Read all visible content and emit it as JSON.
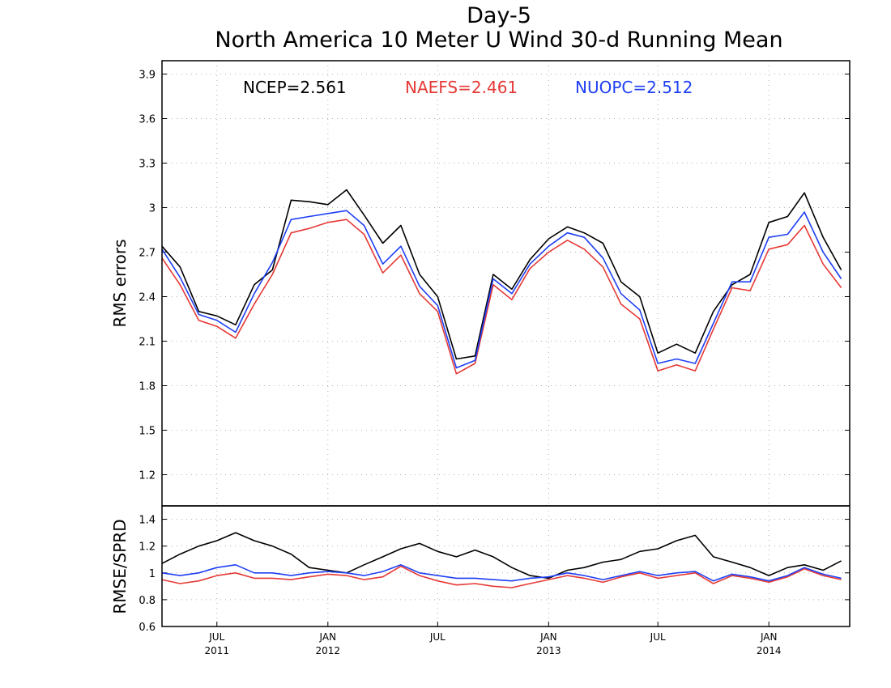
{
  "chart_data": [
    {
      "type": "line",
      "title": "Day-5",
      "subtitle": "North America 10 Meter U Wind 30-d Running Mean",
      "ylabel": "RMS errors",
      "xlabel": "",
      "ylim": [
        0.99,
        3.99
      ],
      "yticks": [
        1.2,
        1.5,
        1.8,
        2.1,
        2.4,
        2.7,
        3.0,
        3.3,
        3.6,
        3.9
      ],
      "ytick_labels": [
        "1.2",
        "1.5",
        "1.8",
        "2.1",
        "2.4",
        "2.7",
        "3",
        "3.3",
        "3.6",
        "3.9"
      ],
      "grid": true,
      "legend_placement": "top",
      "legend": [
        {
          "label": "NCEP=2.561",
          "color": "#000000"
        },
        {
          "label": "NAEFS=2.461",
          "color": "#e53935"
        },
        {
          "label": "NUOPC=2.512",
          "color": "#1e3ff5"
        }
      ],
      "x": [
        "2011-04-01",
        "2011-05-01",
        "2011-06-01",
        "2011-07-01",
        "2011-08-01",
        "2011-09-01",
        "2011-10-01",
        "2011-11-01",
        "2011-12-01",
        "2012-01-01",
        "2012-02-01",
        "2012-03-01",
        "2012-04-01",
        "2012-05-01",
        "2012-06-01",
        "2012-07-01",
        "2012-08-01",
        "2012-09-01",
        "2012-10-01",
        "2012-11-01",
        "2012-12-01",
        "2013-01-01",
        "2013-02-01",
        "2013-03-01",
        "2013-04-01",
        "2013-05-01",
        "2013-06-01",
        "2013-07-01",
        "2013-08-01",
        "2013-09-01",
        "2013-10-01",
        "2013-11-01",
        "2013-12-01",
        "2014-01-01",
        "2014-02-01",
        "2014-03-01",
        "2014-04-01",
        "2014-05-01"
      ],
      "series": [
        {
          "name": "NCEP",
          "color": "#000000",
          "values": [
            2.74,
            2.6,
            2.3,
            2.27,
            2.21,
            2.48,
            2.58,
            3.05,
            3.04,
            3.02,
            3.12,
            2.95,
            2.76,
            2.88,
            2.55,
            2.4,
            1.98,
            2.0,
            2.55,
            2.45,
            2.65,
            2.79,
            2.87,
            2.83,
            2.76,
            2.5,
            2.4,
            2.02,
            2.08,
            2.02,
            2.3,
            2.48,
            2.55,
            2.9,
            2.94,
            3.1,
            2.8,
            2.58
          ]
        },
        {
          "name": "NAEFS",
          "color": "#e53935",
          "values": [
            2.66,
            2.48,
            2.24,
            2.2,
            2.12,
            2.35,
            2.55,
            2.83,
            2.86,
            2.9,
            2.92,
            2.82,
            2.56,
            2.68,
            2.42,
            2.3,
            1.88,
            1.95,
            2.48,
            2.38,
            2.59,
            2.7,
            2.78,
            2.72,
            2.6,
            2.35,
            2.25,
            1.9,
            1.94,
            1.9,
            2.18,
            2.46,
            2.44,
            2.72,
            2.75,
            2.88,
            2.62,
            2.46
          ]
        },
        {
          "name": "NUOPC",
          "color": "#1e3ff5",
          "values": [
            2.72,
            2.53,
            2.28,
            2.24,
            2.16,
            2.42,
            2.63,
            2.92,
            2.94,
            2.96,
            2.98,
            2.88,
            2.62,
            2.74,
            2.47,
            2.34,
            1.92,
            1.97,
            2.52,
            2.42,
            2.62,
            2.74,
            2.83,
            2.8,
            2.66,
            2.42,
            2.31,
            1.95,
            1.98,
            1.95,
            2.22,
            2.5,
            2.5,
            2.8,
            2.82,
            2.97,
            2.7,
            2.52
          ]
        }
      ]
    },
    {
      "type": "line",
      "ylabel": "RMSE/SPRD",
      "xlabel": "",
      "ylim": [
        0.6,
        1.5
      ],
      "yticks": [
        0.6,
        0.8,
        1.0,
        1.2,
        1.4
      ],
      "ytick_labels": [
        "0.6",
        "0.8",
        "1",
        "1.2",
        "1.4"
      ],
      "grid": true,
      "x_tick_labels": [
        {
          "top": "JUL",
          "bottom": "2011",
          "date": "2011-07-01"
        },
        {
          "top": "JAN",
          "bottom": "2012",
          "date": "2012-01-01"
        },
        {
          "top": "JUL",
          "bottom": "",
          "date": "2012-07-01"
        },
        {
          "top": "JAN",
          "bottom": "2013",
          "date": "2013-01-01"
        },
        {
          "top": "JUL",
          "bottom": "",
          "date": "2013-07-01"
        },
        {
          "top": "JAN",
          "bottom": "2014",
          "date": "2014-01-01"
        }
      ],
      "x": [
        "2011-04-01",
        "2011-05-01",
        "2011-06-01",
        "2011-07-01",
        "2011-08-01",
        "2011-09-01",
        "2011-10-01",
        "2011-11-01",
        "2011-12-01",
        "2012-01-01",
        "2012-02-01",
        "2012-03-01",
        "2012-04-01",
        "2012-05-01",
        "2012-06-01",
        "2012-07-01",
        "2012-08-01",
        "2012-09-01",
        "2012-10-01",
        "2012-11-01",
        "2012-12-01",
        "2013-01-01",
        "2013-02-01",
        "2013-03-01",
        "2013-04-01",
        "2013-05-01",
        "2013-06-01",
        "2013-07-01",
        "2013-08-01",
        "2013-09-01",
        "2013-10-01",
        "2013-11-01",
        "2013-12-01",
        "2014-01-01",
        "2014-02-01",
        "2014-03-01",
        "2014-04-01",
        "2014-05-01"
      ],
      "series": [
        {
          "name": "NCEP",
          "color": "#000000",
          "values": [
            1.07,
            1.14,
            1.2,
            1.24,
            1.3,
            1.24,
            1.2,
            1.14,
            1.04,
            1.02,
            1.0,
            1.06,
            1.12,
            1.18,
            1.22,
            1.16,
            1.12,
            1.17,
            1.12,
            1.04,
            0.98,
            0.96,
            1.02,
            1.04,
            1.08,
            1.1,
            1.16,
            1.18,
            1.24,
            1.28,
            1.12,
            1.08,
            1.04,
            0.98,
            1.04,
            1.06,
            1.02,
            1.09
          ]
        },
        {
          "name": "NAEFS",
          "color": "#e53935",
          "values": [
            0.95,
            0.92,
            0.94,
            0.98,
            1.0,
            0.96,
            0.96,
            0.95,
            0.97,
            0.99,
            0.98,
            0.95,
            0.97,
            1.05,
            0.98,
            0.94,
            0.91,
            0.92,
            0.9,
            0.89,
            0.92,
            0.95,
            0.98,
            0.96,
            0.93,
            0.97,
            1.0,
            0.96,
            0.98,
            1.0,
            0.92,
            0.98,
            0.96,
            0.93,
            0.97,
            1.03,
            0.98,
            0.95
          ]
        },
        {
          "name": "NUOPC",
          "color": "#1e3ff5",
          "values": [
            1.0,
            0.98,
            1.0,
            1.04,
            1.06,
            1.0,
            1.0,
            0.98,
            1.0,
            1.01,
            1.0,
            0.98,
            1.01,
            1.06,
            1.0,
            0.98,
            0.96,
            0.96,
            0.95,
            0.94,
            0.96,
            0.97,
            1.0,
            0.98,
            0.95,
            0.98,
            1.01,
            0.98,
            1.0,
            1.01,
            0.94,
            0.99,
            0.97,
            0.94,
            0.98,
            1.04,
            0.99,
            0.96
          ]
        }
      ]
    }
  ]
}
